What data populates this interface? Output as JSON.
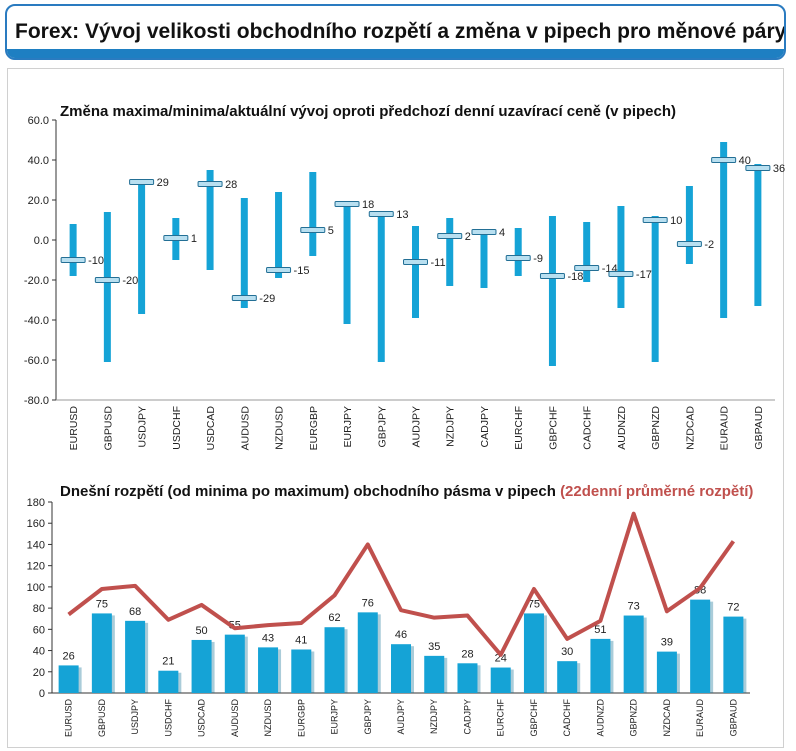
{
  "header": {
    "title": "Forex: Vývoj velikosti obchodního rozpětí a změna v pipech pro měnové páry"
  },
  "colors": {
    "accent": "#1e7fc2",
    "bar": "#15a3d6",
    "avg_line": "#c0504d"
  },
  "chart_data": [
    {
      "type": "bar",
      "title": "Změna maxima/minima/aktuální vývoj oproti předchozí denní uzavírací ceně (v pipech)",
      "ylim": [
        -80,
        60
      ],
      "yticks": [
        "60.0",
        "40.0",
        "20.0",
        "0.0",
        "-20.0",
        "-40.0",
        "-60.0",
        "-80.0"
      ],
      "categories": [
        "EURUSD",
        "GBPUSD",
        "USDJPY",
        "USDCHF",
        "USDCAD",
        "AUDUSD",
        "NZDUSD",
        "EURGBP",
        "EURJPY",
        "GBPJPY",
        "AUDJPY",
        "NZDJPY",
        "CADJPY",
        "EURCHF",
        "GBPCHF",
        "CADCHF",
        "AUDNZD",
        "GBPNZD",
        "NZDCAD",
        "EURAUD",
        "GBPAUD"
      ],
      "series": [
        {
          "values_high": [
            8,
            14,
            30,
            11,
            35,
            21,
            24,
            34,
            19,
            14,
            7,
            11,
            5,
            6,
            12,
            9,
            17,
            12,
            27,
            49,
            38
          ]
        },
        {
          "values_low": [
            -18,
            -61,
            -37,
            -10,
            -15,
            -34,
            -19,
            -8,
            -42,
            -61,
            -39,
            -23,
            -24,
            -18,
            -63,
            -21,
            -34,
            -61,
            -12,
            -39,
            -33
          ]
        },
        {
          "values_current": [
            -10,
            -20,
            29,
            1,
            28,
            -29,
            -15,
            5,
            18,
            13,
            -11,
            2,
            4,
            -9,
            -18,
            -14,
            -17,
            10,
            -2,
            40,
            36
          ]
        }
      ],
      "data_labels": [
        "-10",
        "-20",
        "29",
        "1",
        "28",
        "-29",
        "-15",
        "5",
        "18",
        "13",
        "-11",
        "2",
        "4",
        "-9",
        "-18",
        "-14",
        "-17",
        "10",
        "-2",
        "40",
        "36"
      ]
    },
    {
      "type": "bar",
      "title": "Dnešní rozpětí (od minima po maximum) obchodního pásma v pipech",
      "title_highlight": "(22denní průměrné rozpětí)",
      "ylim": [
        0,
        180
      ],
      "yticks": [
        "180",
        "160",
        "140",
        "120",
        "100",
        "80",
        "60",
        "40",
        "20",
        "0"
      ],
      "categories": [
        "EURUSD",
        "GBPUSD",
        "USDJPY",
        "USDCHF",
        "USDCAD",
        "AUDUSD",
        "NZDUSD",
        "EURGBP",
        "EURJPY",
        "GBPJPY",
        "AUDJPY",
        "NZDJPY",
        "CADJPY",
        "EURCHF",
        "GBPCHF",
        "CADCHF",
        "AUDNZD",
        "GBPNZD",
        "NZDCAD",
        "EURAUD",
        "GBPAUD"
      ],
      "series": [
        {
          "type": "bar",
          "values": [
            26,
            75,
            68,
            21,
            50,
            55,
            43,
            41,
            62,
            76,
            46,
            35,
            28,
            24,
            75,
            30,
            51,
            73,
            39,
            88,
            72
          ]
        },
        {
          "type": "line",
          "values": [
            74,
            98,
            101,
            69,
            83,
            61,
            64,
            66,
            92,
            140,
            78,
            71,
            73,
            36,
            98,
            51,
            68,
            169,
            77,
            99,
            143
          ]
        }
      ],
      "data_labels": [
        "26",
        "75",
        "68",
        "21",
        "50",
        "55",
        "43",
        "41",
        "62",
        "76",
        "46",
        "35",
        "28",
        "24",
        "75",
        "30",
        "51",
        "73",
        "39",
        "88",
        "72"
      ]
    }
  ]
}
